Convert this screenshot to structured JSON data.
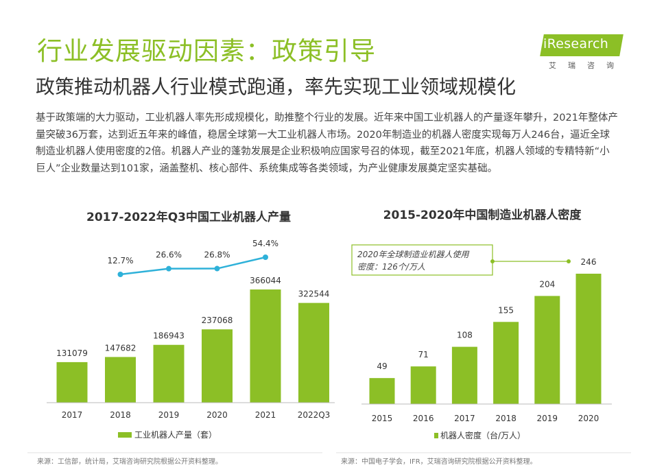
{
  "header": {
    "title": "行业发展驱动因素：政策引导",
    "subtitle": "政策推动机器人行业模式跑通，率先实现工业领域规模化",
    "body": "基于政策端的大力驱动，工业机器人率先形成规模化，助推整个行业的发展。近年来中国工业机器人的产量逐年攀升，2021年整体产量突破36万套，达到近五年来的峰值，稳居全球第一大工业机器人市场。2020年制造业的机器人密度实现每万人246台，逼近全球制造业机器人使用密度的2倍。机器人产业的蓬勃发展是企业积极响应国家号召的体现，截至2021年底，机器人领域的专精特新“小巨人”企业数量达到101家，涵盖整机、核心部件、系统集成等各类领域，为产业健康发展奠定坚实基础。"
  },
  "logo": {
    "text": "iResearch",
    "sub": "艾瑞咨询"
  },
  "colors": {
    "green": "#8cbf26",
    "line": "#2eb1d9",
    "text": "#333333"
  },
  "chart_data": [
    {
      "type": "bar",
      "title": "2017-2022年Q3中国工业机器人产量",
      "categories": [
        "2017",
        "2018",
        "2019",
        "2020",
        "2021",
        "2022Q3"
      ],
      "series": [
        {
          "name": "工业机器人产量（套）",
          "values": [
            131079,
            147682,
            186943,
            237068,
            366044,
            322544
          ]
        }
      ],
      "growth": {
        "categories": [
          "2018",
          "2019",
          "2020",
          "2021"
        ],
        "labels": [
          "12.7%",
          "26.6%",
          "26.8%",
          "54.4%"
        ],
        "values": [
          12.7,
          26.6,
          26.8,
          54.4
        ]
      },
      "legend": "bottom",
      "source": "来源：工信部，统计局，艾瑞咨询研究院根据公开资料整理。"
    },
    {
      "type": "bar",
      "title": "2015-2020年中国制造业机器人密度",
      "categories": [
        "2015",
        "2016",
        "2017",
        "2018",
        "2019",
        "2020"
      ],
      "series": [
        {
          "name": "机器人密度（台/万人）",
          "values": [
            49,
            71,
            108,
            155,
            204,
            246
          ]
        }
      ],
      "reference": {
        "label": "2020年全球制造业机器人使用密度：126个/万人",
        "value": 126
      },
      "legend": "bottom",
      "source": "来源：中国电子学会，IFR，艾瑞咨询研究院根据公开资料整理。"
    }
  ]
}
